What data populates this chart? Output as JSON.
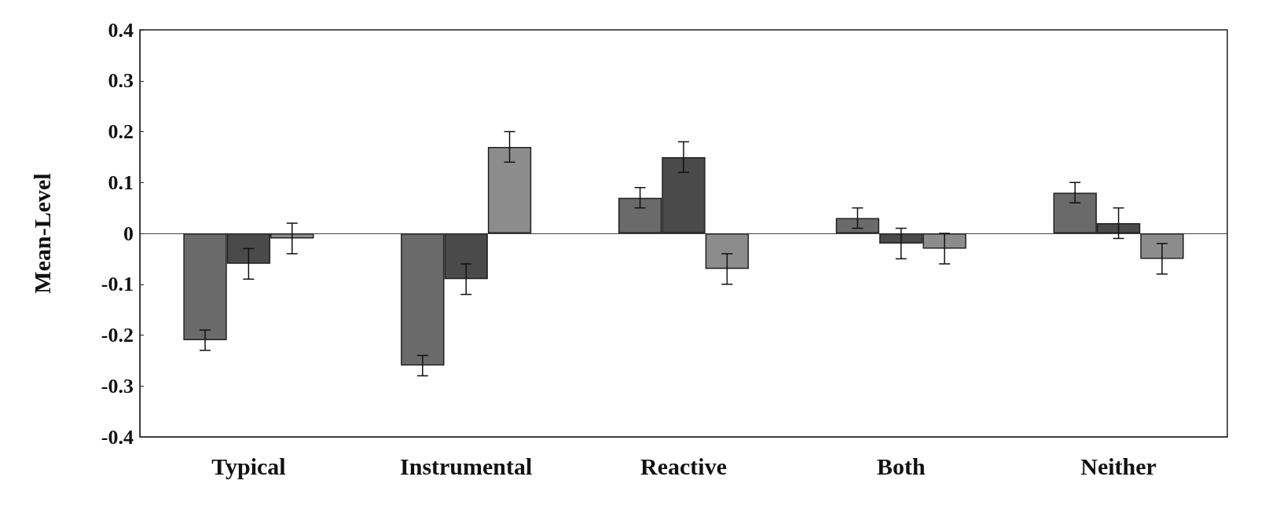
{
  "chart_data": {
    "type": "bar",
    "ylabel": "Mean-Level",
    "categories": [
      "Typical",
      "Instrumental",
      "Reactive",
      "Both",
      "Neither"
    ],
    "series": [
      {
        "color": "#6a6a6a",
        "values": [
          -0.21,
          -0.26,
          0.07,
          0.03,
          0.08
        ],
        "errors": [
          0.02,
          0.02,
          0.02,
          0.02,
          0.02
        ]
      },
      {
        "color": "#4a4a4a",
        "values": [
          -0.06,
          -0.09,
          0.15,
          -0.02,
          0.02
        ],
        "errors": [
          0.03,
          0.03,
          0.03,
          0.03,
          0.03
        ]
      },
      {
        "color": "#8c8c8c",
        "values": [
          -0.01,
          0.17,
          -0.07,
          -0.03,
          -0.05
        ],
        "errors": [
          0.03,
          0.03,
          0.03,
          0.03,
          0.03
        ]
      }
    ],
    "ylim": [
      -0.4,
      0.4
    ],
    "yticks": [
      -0.4,
      -0.3,
      -0.2,
      -0.1,
      0,
      0.1,
      0.2,
      0.3,
      0.4
    ]
  }
}
